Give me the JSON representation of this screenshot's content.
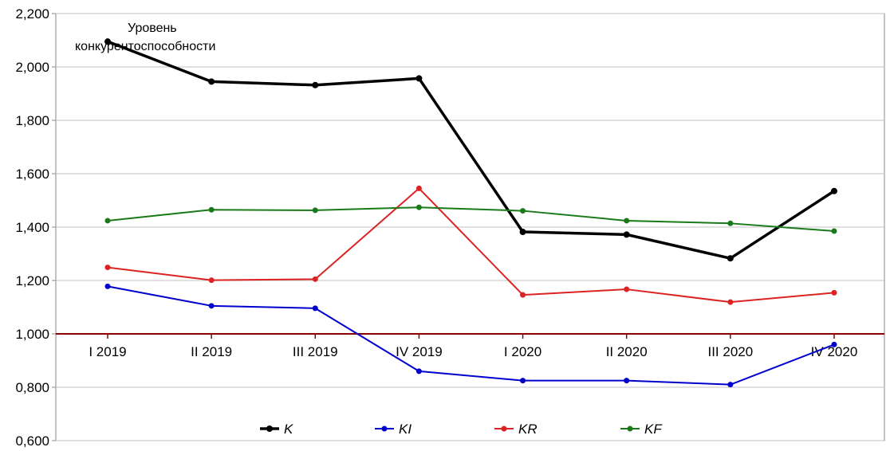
{
  "chart_data": {
    "type": "line",
    "title": "",
    "xlabel": "",
    "ylabel": "",
    "categories": [
      "I 2019",
      "II 2019",
      "III 2019",
      "IV 2019",
      "I 2020",
      "II 2020",
      "III 2020",
      "IV 2020"
    ],
    "y_ticks": [
      "2,200",
      "2,000",
      "1,800",
      "1,600",
      "1,400",
      "1,200",
      "1,000",
      "0,800",
      "0,600"
    ],
    "ylim": [
      0.6,
      2.2
    ],
    "baseline": 1.0,
    "grid": true,
    "legend_position": "bottom",
    "annotation": {
      "line1": "Уровень",
      "line2": "конкурентоспособности"
    },
    "series": [
      {
        "name": "K",
        "color": "#000000",
        "values": [
          2.095,
          1.945,
          1.932,
          1.957,
          1.382,
          1.372,
          1.283,
          1.535
        ]
      },
      {
        "name": "KI",
        "color": "#0000cc",
        "values": [
          1.178,
          1.105,
          1.096,
          0.86,
          0.825,
          0.825,
          0.81,
          0.96
        ]
      },
      {
        "name": "KR",
        "color": "#dd2222",
        "values": [
          1.249,
          1.201,
          1.205,
          1.545,
          1.146,
          1.167,
          1.119,
          1.154
        ]
      },
      {
        "name": "KF",
        "color": "#1a7a1a",
        "values": [
          1.424,
          1.465,
          1.463,
          1.474,
          1.461,
          1.424,
          1.414,
          1.385
        ]
      }
    ],
    "baseline_color": "#8b0000",
    "grid_color": "#c0c0c0"
  }
}
